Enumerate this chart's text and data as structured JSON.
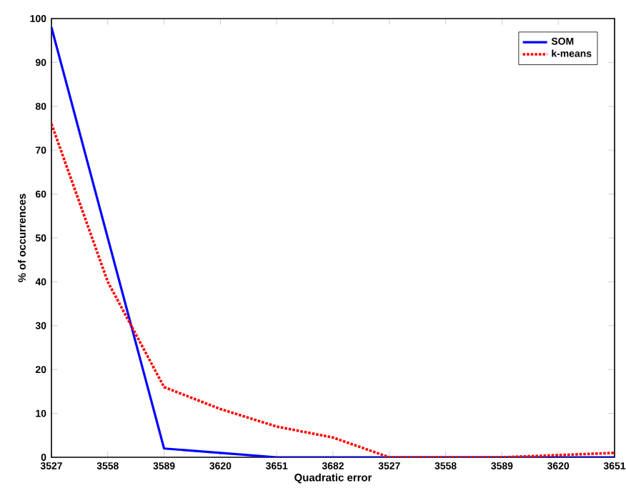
{
  "chart_data": {
    "type": "line",
    "xlabel": "Quadratic error",
    "ylabel": "% of occurrences",
    "categories": [
      "3527",
      "3558",
      "3589",
      "3620",
      "3651",
      "3682",
      "3527",
      "3558",
      "3589",
      "3620",
      "3651"
    ],
    "series": [
      {
        "name": "SOM",
        "color": "#0000ff",
        "line_style": "solid",
        "values": [
          98,
          50,
          2,
          1,
          0,
          0,
          0,
          0,
          0,
          0,
          0
        ]
      },
      {
        "name": "k-means",
        "color": "#ff0000",
        "line_style": "dotted",
        "values": [
          76,
          40,
          16,
          11,
          7,
          4.5,
          0,
          0,
          0,
          0.5,
          1
        ]
      }
    ],
    "ylim": [
      0,
      100
    ],
    "yticks": [
      0,
      10,
      20,
      30,
      40,
      50,
      60,
      70,
      80,
      90,
      100
    ],
    "grid": false,
    "legend": "top right",
    "marker": "none"
  }
}
